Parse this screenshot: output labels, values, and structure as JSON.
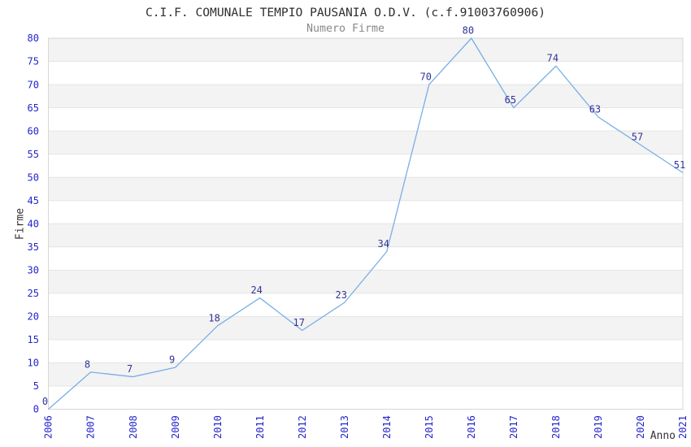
{
  "chart_data": {
    "type": "line",
    "title": "C.I.F. COMUNALE TEMPIO PAUSANIA O.D.V. (c.f.91003760906)",
    "subtitle": "Numero Firme",
    "xlabel": "Anno",
    "ylabel": "Firme",
    "categories": [
      "2006",
      "2007",
      "2008",
      "2009",
      "2010",
      "2011",
      "2012",
      "2013",
      "2014",
      "2015",
      "2016",
      "2017",
      "2018",
      "2019",
      "2020",
      "2021"
    ],
    "values": [
      0,
      8,
      7,
      9,
      18,
      24,
      17,
      23,
      34,
      70,
      80,
      65,
      74,
      63,
      57,
      51
    ],
    "ylim": [
      0,
      80
    ],
    "ytick_step": 5,
    "grid": "horizontal-only",
    "bands": "alternating-gray-white",
    "legend": "none",
    "data_labels": "shown-above-points",
    "colors": {
      "line": "#79aee6",
      "tick_label": "#2424cc",
      "data_label": "#333399",
      "band": "#f3f3f3",
      "gridline": "#e4e4e4",
      "border": "#d7d7d7",
      "title": "#2e2e2e",
      "subtitle": "#888888",
      "axis_title": "#333333",
      "background": "#ffffff"
    }
  }
}
